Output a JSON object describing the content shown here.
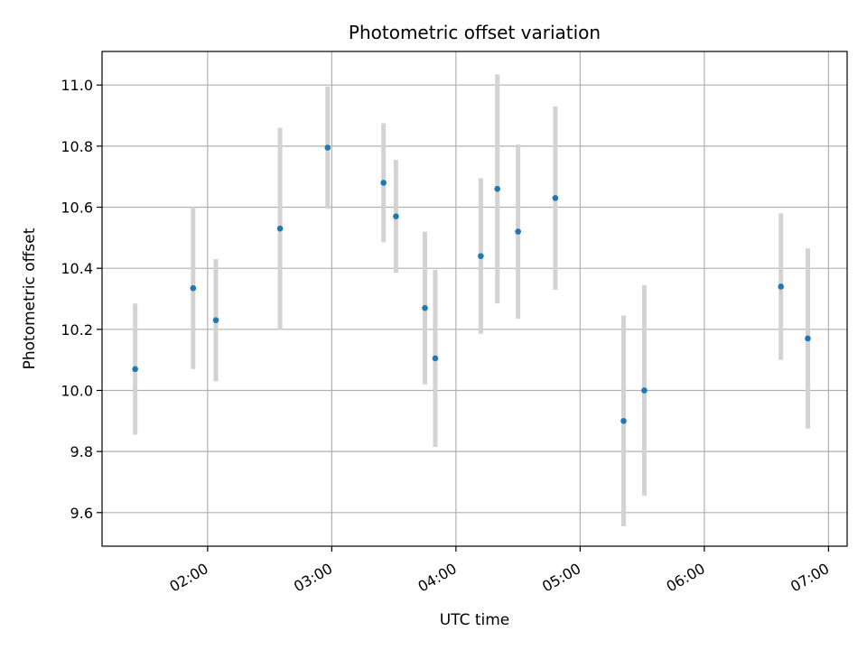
{
  "chart_data": {
    "type": "scatter",
    "title": "Photometric offset variation",
    "xlabel": "UTC time",
    "ylabel": "Photometric offset",
    "grid": true,
    "legend": "none",
    "xlim": [
      "01:09",
      "07:09"
    ],
    "ylim": [
      9.49,
      11.11
    ],
    "x_ticks": [
      "02:00",
      "03:00",
      "04:00",
      "05:00",
      "06:00",
      "07:00"
    ],
    "y_ticks": [
      "9.6",
      "9.8",
      "10.0",
      "10.2",
      "10.4",
      "10.6",
      "10.8",
      "11.0"
    ],
    "colors": {
      "point": "#1f77b4",
      "errorbar": "#d3d3d3",
      "grid": "#b0b0b0"
    },
    "series": [
      {
        "x": [
          "01:25",
          "01:53",
          "02:04",
          "02:35",
          "02:58",
          "03:25",
          "03:31",
          "03:45",
          "03:50",
          "04:12",
          "04:20",
          "04:30",
          "04:48",
          "05:21",
          "05:31",
          "06:37",
          "06:50"
        ],
        "y": [
          10.07,
          10.335,
          10.23,
          10.53,
          10.795,
          10.68,
          10.57,
          10.27,
          10.105,
          10.44,
          10.66,
          10.52,
          10.63,
          9.9,
          10.0,
          10.34,
          10.17
        ],
        "yerr": [
          0.215,
          0.265,
          0.2,
          0.33,
          0.2,
          0.195,
          0.185,
          0.25,
          0.29,
          0.255,
          0.375,
          0.285,
          0.3,
          0.345,
          0.345,
          0.24,
          0.295
        ]
      }
    ]
  }
}
